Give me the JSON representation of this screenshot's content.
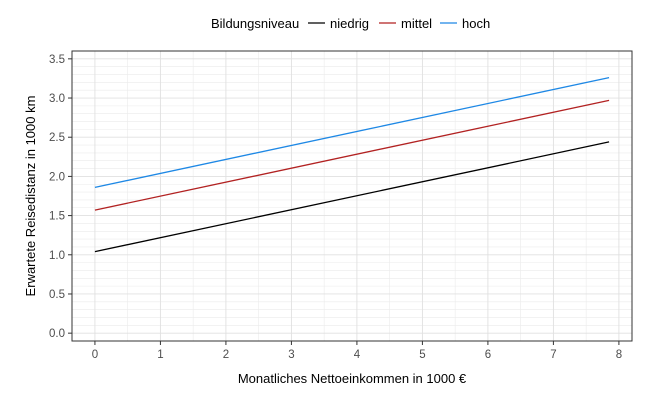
{
  "chart_data": {
    "type": "line",
    "title": "",
    "xlabel": "Monatliches Nettoeinkommen in 1000 €",
    "ylabel": "Erwartete Reisedistanz in 1000 km",
    "xlim": [
      -0.35,
      8.2
    ],
    "ylim": [
      -0.1,
      3.6
    ],
    "x_ticks": [
      0,
      1,
      2,
      3,
      4,
      5,
      6,
      7,
      8
    ],
    "y_ticks": [
      0.0,
      0.5,
      1.0,
      1.5,
      2.0,
      2.5,
      3.0,
      3.5
    ],
    "x_tick_labels": [
      "0",
      "1",
      "2",
      "3",
      "4",
      "5",
      "6",
      "7",
      "8"
    ],
    "y_tick_labels": [
      "0.0",
      "0.5",
      "1.0",
      "1.5",
      "2.0",
      "2.5",
      "3.0",
      "3.5"
    ],
    "grid": true,
    "legend": {
      "position": "top",
      "title": "Bildungsniveau"
    },
    "series": [
      {
        "name": "niedrig",
        "color": "#000000",
        "x": [
          0,
          7.85
        ],
        "y": [
          1.04,
          2.44
        ]
      },
      {
        "name": "mittel",
        "color": "#b22222",
        "x": [
          0,
          7.85
        ],
        "y": [
          1.57,
          2.97
        ]
      },
      {
        "name": "hoch",
        "color": "#1e88e5",
        "x": [
          0,
          7.85
        ],
        "y": [
          1.86,
          3.26
        ]
      }
    ]
  }
}
